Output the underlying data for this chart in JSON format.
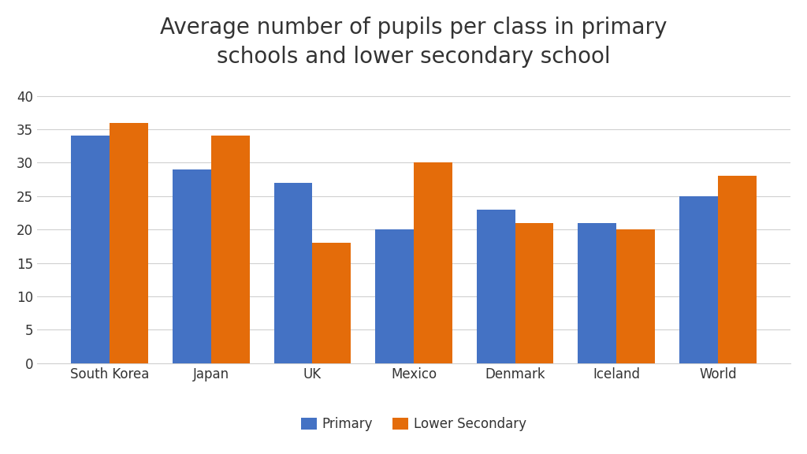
{
  "title": "Average number of pupils per class in primary\nschools and lower secondary school",
  "categories": [
    "South Korea",
    "Japan",
    "UK",
    "Mexico",
    "Denmark",
    "Iceland",
    "World"
  ],
  "primary": [
    34,
    29,
    27,
    20,
    23,
    21,
    25
  ],
  "lower_secondary": [
    36,
    34,
    18,
    30,
    21,
    20,
    28
  ],
  "primary_color": "#4472C4",
  "secondary_color": "#E46C0A",
  "ylim": [
    0,
    42
  ],
  "yticks": [
    0,
    5,
    10,
    15,
    20,
    25,
    30,
    35,
    40
  ],
  "legend_labels": [
    "Primary",
    "Lower Secondary"
  ],
  "bar_width": 0.38,
  "title_fontsize": 20,
  "tick_fontsize": 12,
  "legend_fontsize": 12,
  "background_color": "#ffffff",
  "grid_color": "#d0d0d0"
}
